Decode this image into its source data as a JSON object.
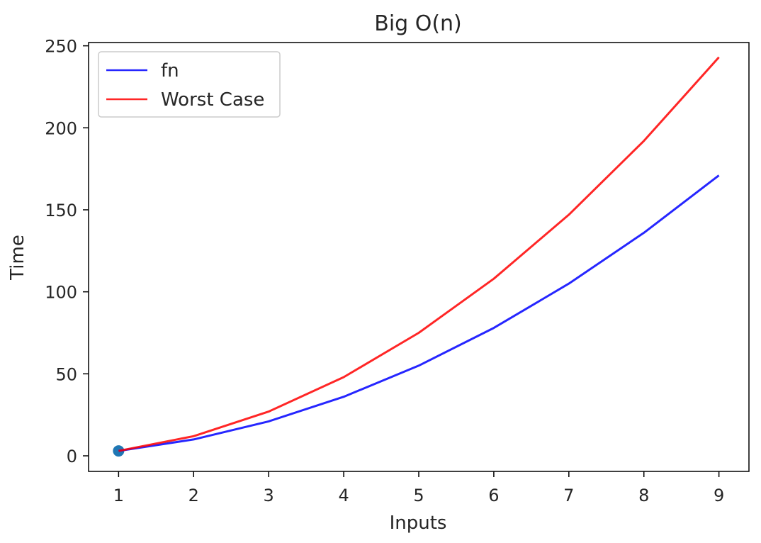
{
  "chart_data": {
    "type": "line",
    "title": "Big O(n)",
    "xlabel": "Inputs",
    "ylabel": "Time",
    "xlim": [
      0.6,
      9.4
    ],
    "ylim": [
      -9.5,
      252
    ],
    "x": [
      1,
      2,
      3,
      4,
      5,
      6,
      7,
      8,
      9
    ],
    "x_ticks": [
      "1",
      "2",
      "3",
      "4",
      "5",
      "6",
      "7",
      "8",
      "9"
    ],
    "y_ticks": [
      0,
      50,
      100,
      150,
      200,
      250
    ],
    "y_tick_labels": [
      "0",
      "50",
      "100",
      "150",
      "200",
      "250"
    ],
    "grid": false,
    "legend_position": "top-left",
    "series": [
      {
        "name": "fn",
        "color": "#0000ff",
        "values": [
          3,
          10,
          21,
          36,
          55,
          78,
          105,
          136,
          171
        ]
      },
      {
        "name": "Worst Case",
        "color": "#ff0000",
        "values": [
          3,
          12,
          27,
          48,
          75,
          108,
          147,
          192,
          243
        ]
      }
    ],
    "markers": [
      {
        "x": 1,
        "y": 3,
        "color": "#1f77b4"
      }
    ]
  }
}
